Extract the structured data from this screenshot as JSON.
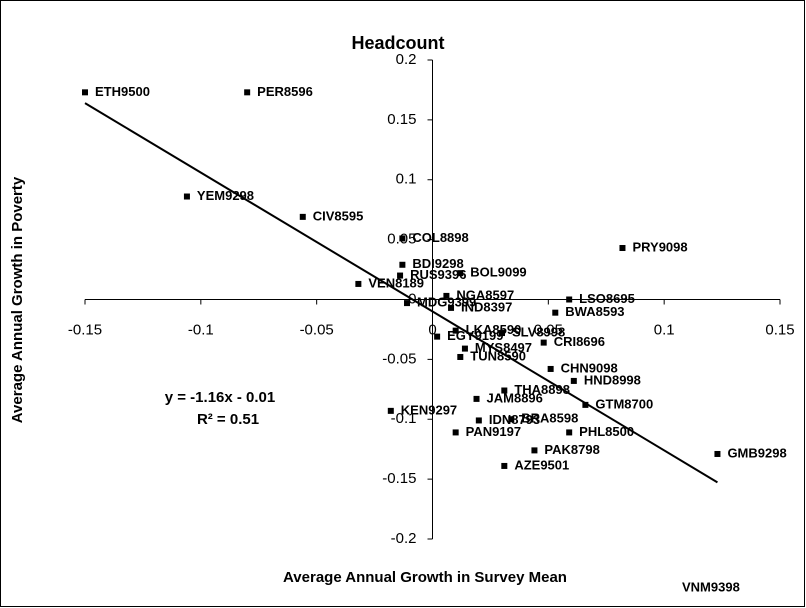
{
  "chart_data": {
    "type": "scatter",
    "title": "Headcount",
    "x_label": "Average Annual Growth in Survey Mean",
    "y_label": "Average Annual Growth in Poverty",
    "xlim": [
      -0.15,
      0.15
    ],
    "xticks": [
      -0.15,
      -0.1,
      -0.05,
      0,
      0.05,
      0.1,
      0.15
    ],
    "ylim": [
      -0.2,
      0.2
    ],
    "yticks": [
      0.2,
      0.15,
      0.1,
      0.05,
      0,
      -0.05,
      -0.1,
      -0.15,
      -0.2
    ],
    "series": [
      {
        "color": "#000000",
        "labels": [
          "ETH9500",
          "PER8596",
          "YEM9298",
          "CIV8595",
          "COL8898",
          "BDI9298",
          "RUS9396",
          "VEN8189",
          "BOL9099",
          "MDG9399",
          "NGA8597",
          "IND8397",
          "LSO8695",
          "PRY9098",
          "BWA8593",
          "LKA8590",
          "EGY9199",
          "SLV8998",
          "CRI8696",
          "MYS8497",
          "TUN8590",
          "CHN9098",
          "HND8998",
          "THA8898",
          "JAM8896",
          "GTM8700",
          "KEN9297",
          "IDN8793",
          "BRA8598",
          "PAN9197",
          "PHL8500",
          "PAK8798",
          "GMB9298",
          "AZE9501"
        ],
        "x": [
          -0.15,
          -0.08,
          -0.106,
          -0.056,
          -0.013,
          -0.013,
          -0.014,
          -0.032,
          0.012,
          -0.011,
          0.006,
          0.008,
          0.059,
          0.082,
          0.053,
          0.01,
          0.002,
          0.03,
          0.048,
          0.014,
          0.012,
          0.051,
          0.061,
          0.031,
          0.019,
          0.066,
          -0.018,
          0.02,
          0.034,
          0.01,
          0.059,
          0.044,
          0.123,
          0.031
        ],
        "values": [
          0.173,
          0.173,
          0.086,
          0.069,
          0.051,
          0.029,
          0.02,
          0.013,
          0.022,
          -0.003,
          0.003,
          -0.007,
          0.0,
          0.043,
          -0.011,
          -0.026,
          -0.031,
          -0.028,
          -0.036,
          -0.041,
          -0.048,
          -0.058,
          -0.068,
          -0.076,
          -0.083,
          -0.088,
          -0.093,
          -0.101,
          -0.1,
          -0.111,
          -0.111,
          -0.126,
          -0.129,
          -0.139
        ]
      }
    ],
    "trendline": {
      "slope": -1.16,
      "intercept": -0.01
    },
    "equation": "y = -1.16x - 0.01",
    "r2_label": "R² = 0.51",
    "annotation": "VNM9398"
  }
}
